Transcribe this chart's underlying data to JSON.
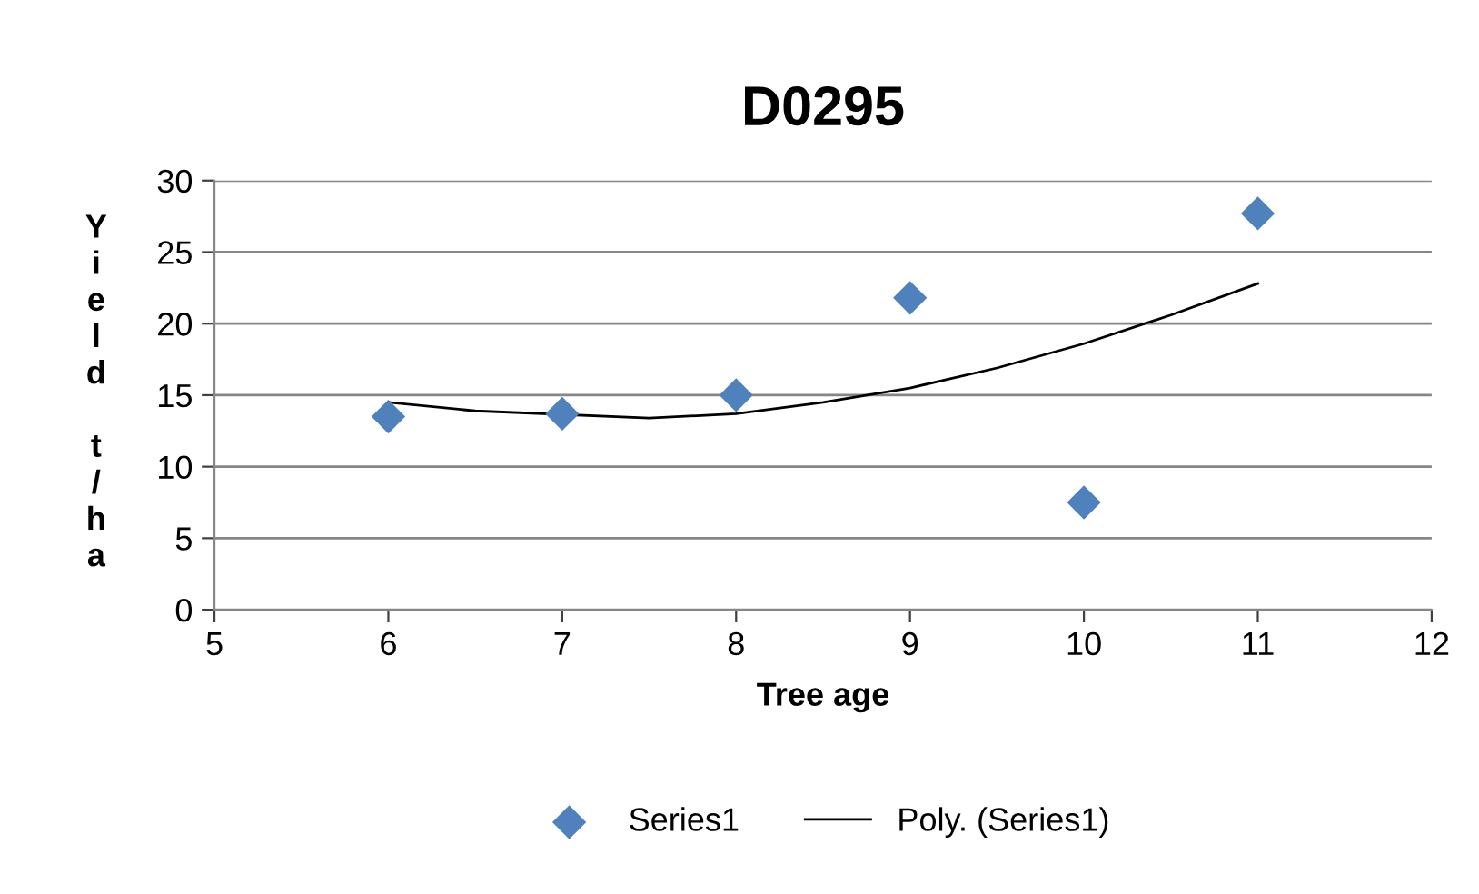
{
  "chart_data": {
    "type": "scatter",
    "title": "D0295",
    "xlabel": "Tree age",
    "ylabel": "Yield t/ha",
    "xlim": [
      5,
      12
    ],
    "xticks": [
      5,
      6,
      7,
      8,
      9,
      10,
      11,
      12
    ],
    "ylim": [
      0,
      30
    ],
    "yticks": [
      0,
      5,
      10,
      15,
      20,
      25,
      30
    ],
    "grid": "y",
    "legend": "bottom",
    "marker": "diamond",
    "series": [
      {
        "name": "Series1",
        "color": "#4f81bd",
        "x": [
          6,
          7,
          8,
          9,
          10,
          11
        ],
        "values": [
          13.5,
          13.7,
          15.0,
          21.8,
          7.5,
          27.7
        ]
      },
      {
        "name": "Poly. (Series1)",
        "type": "line",
        "color": "#000000",
        "marker": "none",
        "line_style": "solid",
        "x": [
          6,
          6.5,
          7.5,
          8,
          8.5,
          9,
          9.5,
          10,
          10.5,
          11
        ],
        "values": [
          14.5,
          13.9,
          13.4,
          13.7,
          14.5,
          15.5,
          16.9,
          18.6,
          20.6,
          22.8
        ]
      }
    ]
  }
}
